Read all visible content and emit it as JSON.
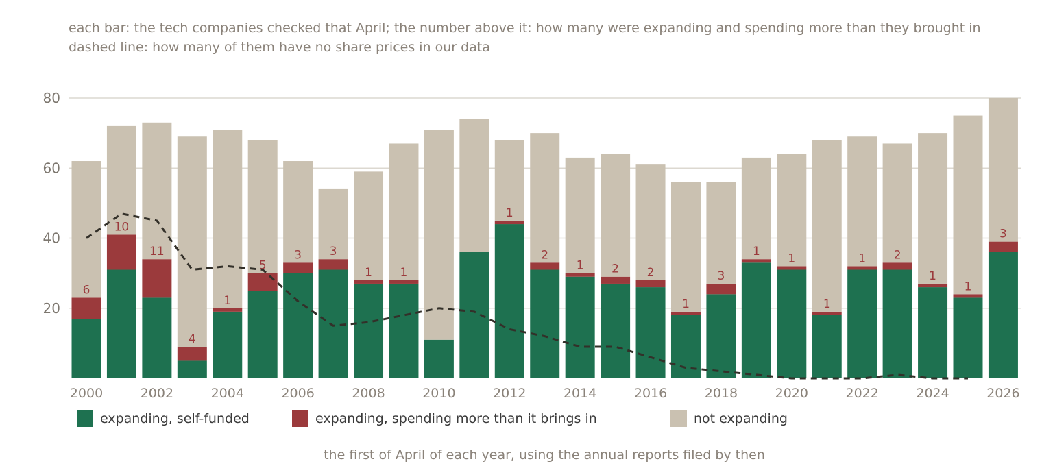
{
  "subtitle_lines": [
    "each bar: the tech companies checked that April; the number above it: how many were expanding and spending more than they brought in",
    "dashed line: how many of them have no share prices in our data"
  ],
  "chart_data": {
    "type": "bar",
    "stacked": true,
    "x": [
      2000,
      2001,
      2002,
      2003,
      2004,
      2005,
      2006,
      2007,
      2008,
      2009,
      2010,
      2011,
      2012,
      2013,
      2014,
      2015,
      2016,
      2017,
      2018,
      2019,
      2020,
      2021,
      2022,
      2023,
      2024,
      2025,
      2026
    ],
    "series": [
      {
        "name": "expanding, self-funded",
        "color": "#1e7150",
        "values": [
          17,
          31,
          23,
          5,
          19,
          25,
          30,
          31,
          27,
          27,
          11,
          36,
          44,
          31,
          29,
          27,
          26,
          18,
          24,
          33,
          31,
          18,
          31,
          31,
          26,
          23,
          36
        ]
      },
      {
        "name": "expanding, spending more than it brings in",
        "color": "#9b3a3c",
        "values": [
          6,
          10,
          11,
          4,
          1,
          5,
          3,
          3,
          1,
          1,
          0,
          0,
          1,
          2,
          1,
          2,
          2,
          1,
          3,
          1,
          1,
          1,
          1,
          2,
          1,
          1,
          3
        ]
      },
      {
        "name": "not expanding",
        "color": "#cac1b1",
        "values": [
          39,
          31,
          39,
          60,
          51,
          38,
          29,
          20,
          31,
          39,
          60,
          38,
          23,
          37,
          33,
          35,
          33,
          37,
          29,
          29,
          32,
          49,
          37,
          34,
          43,
          51,
          41
        ]
      }
    ],
    "data_labels": [
      "6",
      "10",
      "11",
      "4",
      "1",
      "5",
      "3",
      "3",
      "1",
      "1",
      "",
      "",
      "1",
      "2",
      "1",
      "2",
      "2",
      "1",
      "3",
      "1",
      "1",
      "1",
      "1",
      "2",
      "1",
      "1",
      "3"
    ],
    "line": {
      "style": "dashed",
      "color": "#333029",
      "x": [
        2000,
        2001,
        2002,
        2003,
        2004,
        2005,
        2006,
        2007,
        2008,
        2009,
        2010,
        2011,
        2012,
        2013,
        2014,
        2015,
        2016,
        2017,
        2018,
        2019,
        2020,
        2021,
        2022,
        2023,
        2024,
        2025
      ],
      "values": [
        40,
        47,
        45,
        31,
        32,
        31,
        22,
        15,
        16,
        18,
        20,
        19,
        14,
        12,
        9,
        9,
        6,
        3,
        2,
        1,
        0,
        0,
        0,
        1,
        0,
        0
      ]
    },
    "ylim": [
      0,
      80
    ],
    "yticks": [
      20,
      40,
      60,
      80
    ],
    "xticks": [
      2000,
      2002,
      2004,
      2006,
      2008,
      2010,
      2012,
      2014,
      2016,
      2018,
      2020,
      2022,
      2024,
      2026
    ],
    "xlabel": "the first of April of each year, using the annual reports filed by then",
    "grid": true,
    "legend_position": "bottom"
  }
}
